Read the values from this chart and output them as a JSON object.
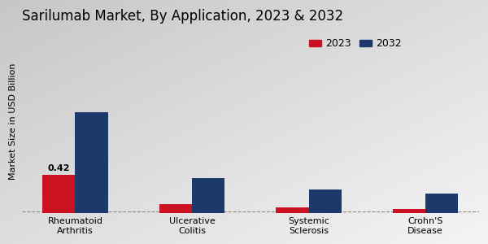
{
  "title": "Sarilumab Market, By Application, 2023 & 2032",
  "ylabel": "Market Size in USD Billion",
  "categories": [
    "Rheumatoid\nArthritis",
    "Ulcerative\nColitis",
    "Systemic\nSclerosis",
    "Crohn'S\nDisease"
  ],
  "values_2023": [
    0.42,
    0.1,
    0.07,
    0.05
  ],
  "values_2032": [
    1.1,
    0.38,
    0.26,
    0.22
  ],
  "color_2023": "#cc1122",
  "color_2032": "#1b3a6b",
  "bar_width": 0.28,
  "annotation_value": "0.42",
  "background_color_top": "#d0d0d0",
  "background_color_bottom": "#f5f5f5",
  "legend_labels": [
    "2023",
    "2032"
  ],
  "title_fontsize": 12,
  "ylabel_fontsize": 8,
  "tick_fontsize": 8,
  "legend_fontsize": 9,
  "ylim": [
    0,
    2.0
  ],
  "figsize": [
    6.0,
    3.0
  ],
  "dpi": 100
}
